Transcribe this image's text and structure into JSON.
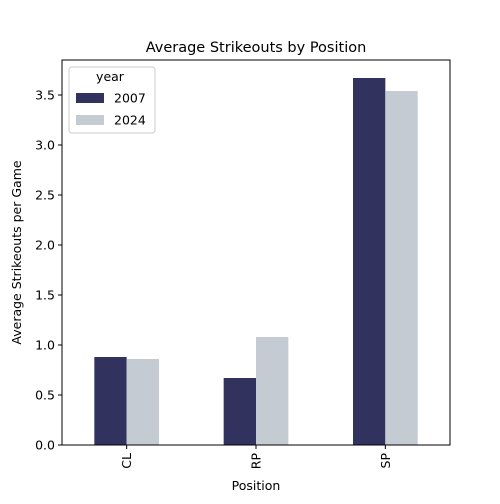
{
  "chart_data": {
    "type": "bar",
    "title": "Average Strikeouts by Position",
    "xlabel": "Position",
    "ylabel": "Average Strikeouts per Game",
    "categories": [
      "CL",
      "RP",
      "SP"
    ],
    "series": [
      {
        "name": "2007",
        "values": [
          0.88,
          0.67,
          3.67
        ],
        "color": "#32325f"
      },
      {
        "name": "2024",
        "values": [
          0.86,
          1.08,
          3.54
        ],
        "color": "#c4cbd3"
      }
    ],
    "ylim": [
      0,
      3.85
    ],
    "yticks": [
      0.0,
      0.5,
      1.0,
      1.5,
      2.0,
      2.5,
      3.0,
      3.5
    ],
    "ytick_labels": [
      "0.0",
      "0.5",
      "1.0",
      "1.5",
      "2.0",
      "2.5",
      "3.0",
      "3.5"
    ],
    "legend": {
      "title": "year",
      "placement": "top-left"
    },
    "grid": false
  }
}
